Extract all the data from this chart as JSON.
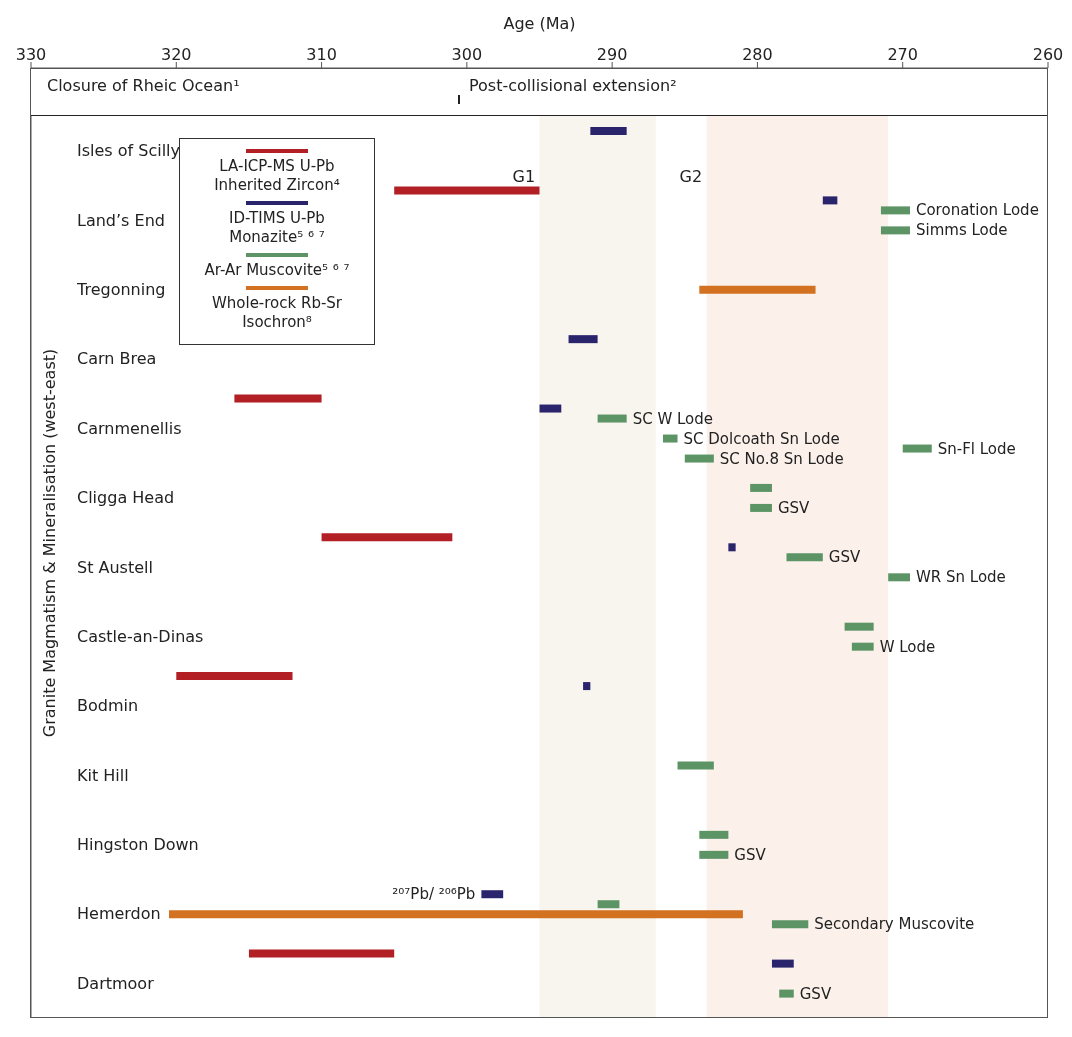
{
  "chart_data": {
    "type": "bar",
    "orientation": "horizontal",
    "xlabel": "Age (Ma)",
    "ylabel": "Granite Magmatism & Mineralisation (west-east)",
    "categories": [
      "Isles of Scilly",
      "Land’s End",
      "Tregonning",
      "Carn Brea",
      "Carnmenellis",
      "Cligga Head",
      "St Austell",
      "Castle-an-Dinas",
      "Bodmin",
      "Kit Hill",
      "Hingston Down",
      "Hemerdon",
      "Dartmoor"
    ],
    "xlim": [
      330,
      260
    ],
    "xticks": [
      330,
      320,
      310,
      300,
      290,
      280,
      270,
      260
    ],
    "grid": false,
    "legend": "top left",
    "series": [
      {
        "name": "LA-ICP-MS U-Pb Inherited Zircon⁴",
        "color": "#b21f24",
        "base": [
          null,
          295,
          null,
          null,
          310,
          null,
          301,
          null,
          312,
          null,
          null,
          null,
          305
        ],
        "values": [
          null,
          10,
          null,
          null,
          6,
          null,
          9,
          null,
          8,
          null,
          null,
          null,
          10
        ]
      },
      {
        "name": "ID-TIMS U-Pb Monazite⁵ ⁶ ⁷",
        "color": "#29246b",
        "base": [
          289,
          274.5,
          null,
          291,
          293.5,
          null,
          281.5,
          null,
          291.5,
          null,
          null,
          297.5,
          277.5
        ],
        "values": [
          2.5,
          1,
          null,
          2,
          1.5,
          null,
          0.5,
          null,
          0.5,
          null,
          null,
          1.5,
          1.5
        ]
      },
      {
        "name": "Ar-Ar Muscovite⁵ ⁶ ⁷",
        "color": "#5d9466",
        "base": [
          null,
          269.5,
          null,
          null,
          289,
          279,
          275.5,
          272,
          null,
          283,
          282,
          289.5,
          null
        ],
        "values": [
          null,
          2,
          null,
          null,
          2,
          1.5,
          2.5,
          2,
          null,
          2.5,
          2,
          1.5,
          null
        ]
      },
      {
        "name": "Whole-rock Rb-Sr Isochron⁸",
        "color": "#d2711f",
        "base": [
          null,
          null,
          276,
          null,
          null,
          null,
          null,
          null,
          null,
          null,
          null,
          281,
          null
        ],
        "values": [
          null,
          null,
          8,
          null,
          null,
          null,
          null,
          null,
          null,
          null,
          null,
          39.5,
          null
        ]
      },
      {
        "color": "#5d9466",
        "base": [
          null,
          269.5,
          null,
          null,
          285.5,
          279,
          269.5,
          272,
          null,
          null,
          282,
          276.5,
          277.5
        ],
        "values": [
          null,
          2,
          null,
          null,
          1,
          1.5,
          1.5,
          1.5,
          null,
          null,
          2,
          2.5,
          1
        ]
      },
      {
        "color": "#5d9466",
        "base": [
          null,
          null,
          null,
          null,
          268,
          null,
          null,
          null,
          null,
          null,
          null,
          null,
          null
        ],
        "values": [
          null,
          null,
          null,
          null,
          2,
          null,
          null,
          null,
          null,
          null,
          null,
          null,
          null
        ]
      },
      {
        "color": "#5d9466",
        "base": [
          null,
          null,
          null,
          null,
          283,
          null,
          null,
          null,
          null,
          null,
          null,
          null,
          null
        ],
        "values": [
          null,
          null,
          null,
          null,
          2,
          null,
          null,
          null,
          null,
          null,
          null,
          null,
          null
        ]
      }
    ],
    "bands": [
      {
        "axis": "x",
        "from": 295,
        "to": 287,
        "label": "G1",
        "color": "#f8f4ee"
      },
      {
        "axis": "x",
        "from": 283.5,
        "to": 271,
        "label": "G2",
        "color": "#fbf0ea"
      }
    ],
    "annotations": [
      "Closure of Rheic Ocean¹",
      "Post-collisional extension²",
      "SC Dolcoath Sn Lode",
      "Sn-Fl Lode",
      "SC No.8 Sn Lode",
      "WR Sn Lode",
      "Secondary Muscovite",
      "GSV",
      "Simms Lode",
      "Coronation Lode",
      "SC W Lode",
      "GSV",
      "GSV",
      "W Lode",
      "GSV",
      {
        "text": "²⁰⁷Pb/ ²⁰⁶Pb",
        "x": 299,
        "y": "Hemerdon"
      }
    ]
  }
}
